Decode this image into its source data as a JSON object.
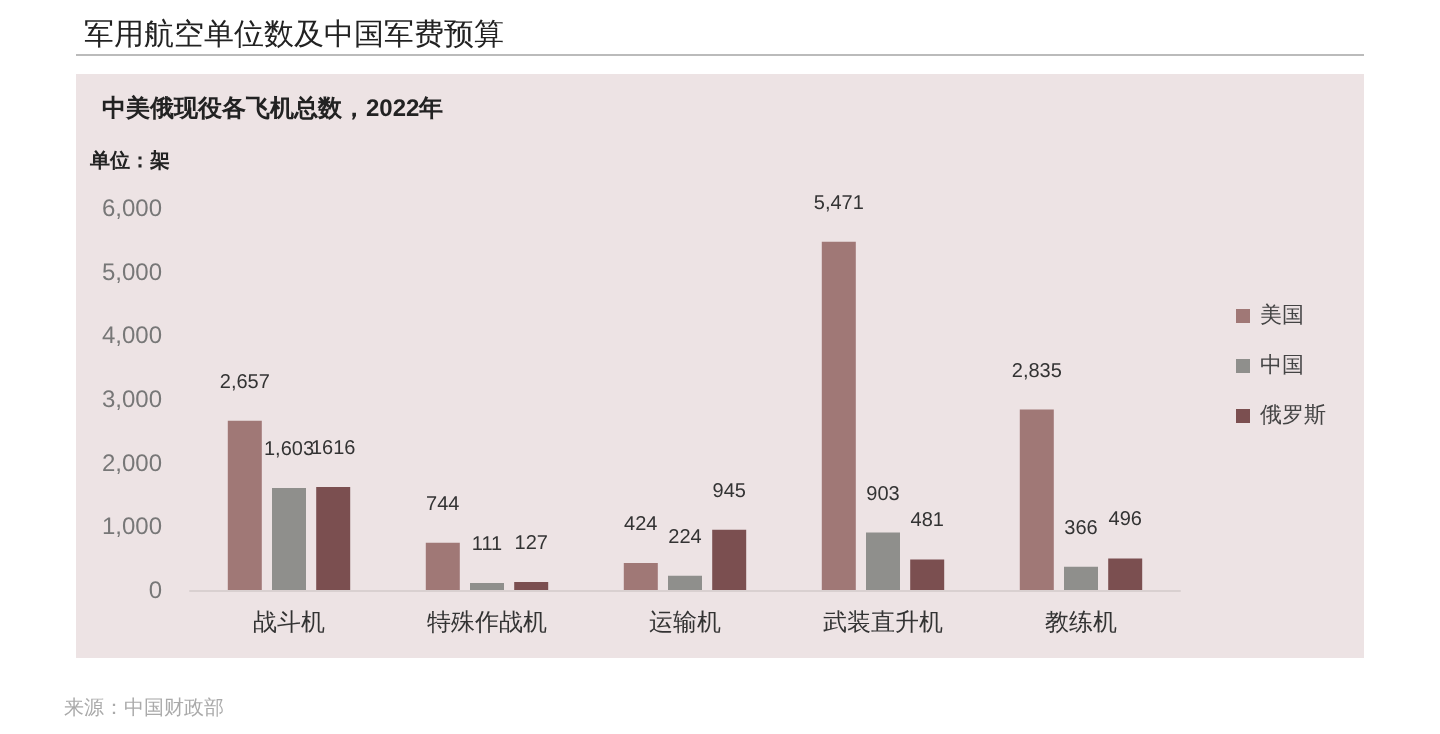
{
  "chart_data": {
    "type": "bar",
    "title": "军用航空单位数及中国军费预算",
    "subtitle": "中美俄现役各飞机总数，2022年",
    "ylabel": "单位：架",
    "categories": [
      "战斗机",
      "特殊作战机",
      "运输机",
      "武装直升机",
      "教练机"
    ],
    "series": [
      {
        "name": "美国",
        "color": "#a07876",
        "values": [
          2657,
          744,
          424,
          5471,
          2835
        ],
        "value_labels": [
          "2,657",
          "744",
          "424",
          "5,471",
          "2,835"
        ]
      },
      {
        "name": "中国",
        "color": "#8f8f8c",
        "values": [
          1603,
          111,
          224,
          903,
          366
        ],
        "value_labels": [
          "1,603",
          "111",
          "224",
          "903",
          "366"
        ]
      },
      {
        "name": "俄罗斯",
        "color": "#7b4f50",
        "values": [
          1616,
          127,
          945,
          481,
          496
        ],
        "value_labels": [
          "1616",
          "127",
          "945",
          "481",
          "496"
        ]
      }
    ],
    "ylim": [
      0,
      6000
    ],
    "yticks": [
      0,
      {
        "value": 1000,
        "label": "1,000"
      },
      {
        "value": 2000,
        "label": "2,000"
      },
      {
        "value": 3000,
        "label": "3,000"
      },
      {
        "value": 4000,
        "label": "4,000"
      },
      {
        "value": 5000,
        "label": "5,000"
      },
      {
        "value": 6000,
        "label": "6,000"
      }
    ],
    "grid": false,
    "legend": "right",
    "annotations": [
      "来源：中国财政部"
    ]
  }
}
